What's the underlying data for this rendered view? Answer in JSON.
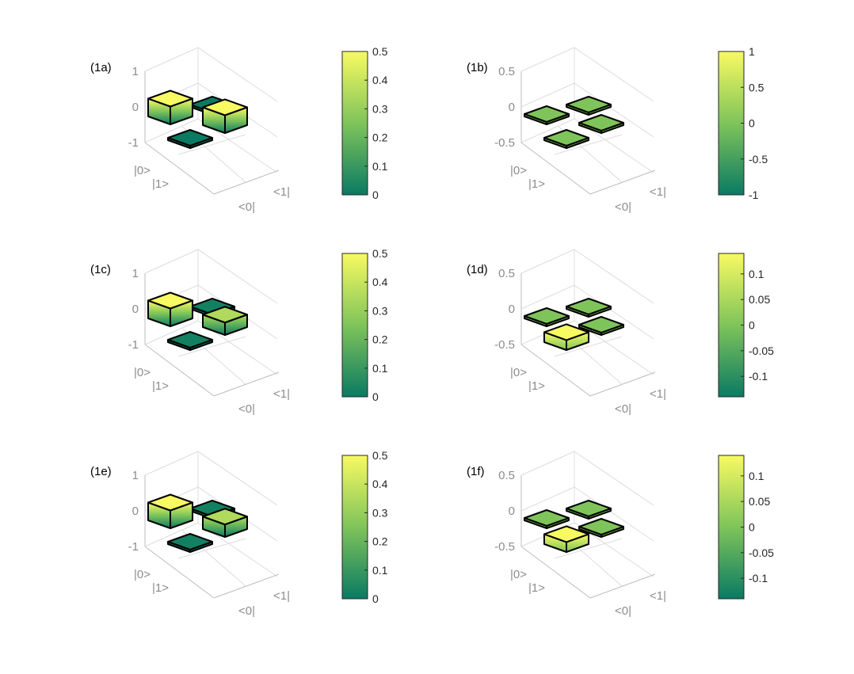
{
  "colormap": {
    "low": "#0a7a63",
    "mid": "#7fc45a",
    "high": "#f8fa62"
  },
  "chart_data": [
    {
      "type": "bar3d",
      "label": "(1a)",
      "row_labels": [
        "|0>",
        "|1>"
      ],
      "col_labels": [
        "<0|",
        "<1|"
      ],
      "values": [
        [
          0.5,
          0.0
        ],
        [
          0.0,
          0.5
        ]
      ],
      "zlim": [
        -1,
        1
      ],
      "zticks": [
        "1",
        "0",
        "-1"
      ],
      "colorbar": {
        "range": [
          0,
          0.5
        ],
        "ticks": [
          "0.5",
          "0.4",
          "0.3",
          "0.2",
          "0.1",
          "0"
        ]
      }
    },
    {
      "type": "bar3d",
      "label": "(1b)",
      "row_labels": [
        "|0>",
        "|1>"
      ],
      "col_labels": [
        "<0|",
        "<1|"
      ],
      "values": [
        [
          0.0,
          0.0
        ],
        [
          0.0,
          0.0
        ]
      ],
      "zlim": [
        -0.5,
        0.5
      ],
      "zticks": [
        "0.5",
        "0",
        "-0.5"
      ],
      "colorbar": {
        "range": [
          -1,
          1
        ],
        "ticks": [
          "1",
          "0.5",
          "0",
          "-0.5",
          "-1"
        ]
      }
    },
    {
      "type": "bar3d",
      "label": "(1c)",
      "row_labels": [
        "|0>",
        "|1>"
      ],
      "col_labels": [
        "<0|",
        "<1|"
      ],
      "values": [
        [
          0.5,
          0.02
        ],
        [
          0.02,
          0.35
        ]
      ],
      "zlim": [
        -1,
        1
      ],
      "zticks": [
        "1",
        "0",
        "-1"
      ],
      "colorbar": {
        "range": [
          0,
          0.5
        ],
        "ticks": [
          "0.5",
          "0.4",
          "0.3",
          "0.2",
          "0.1",
          "0"
        ]
      }
    },
    {
      "type": "bar3d",
      "label": "(1d)",
      "row_labels": [
        "|0>",
        "|1>"
      ],
      "col_labels": [
        "<0|",
        "<1|"
      ],
      "values": [
        [
          0.0,
          0.0
        ],
        [
          0.14,
          0.0
        ]
      ],
      "zlim": [
        -0.5,
        0.5
      ],
      "zticks": [
        "0.5",
        "0",
        "-0.5"
      ],
      "colorbar": {
        "range": [
          -0.14,
          0.14
        ],
        "ticks": [
          "0.1",
          "0.05",
          "0",
          "-0.05",
          "-0.1"
        ]
      }
    },
    {
      "type": "bar3d",
      "label": "(1e)",
      "row_labels": [
        "|0>",
        "|1>"
      ],
      "col_labels": [
        "<0|",
        "<1|"
      ],
      "values": [
        [
          0.5,
          0.02
        ],
        [
          0.02,
          0.35
        ]
      ],
      "zlim": [
        -1,
        1
      ],
      "zticks": [
        "1",
        "0",
        "-1"
      ],
      "colorbar": {
        "range": [
          0,
          0.5
        ],
        "ticks": [
          "0.5",
          "0.4",
          "0.3",
          "0.2",
          "0.1",
          "0"
        ]
      }
    },
    {
      "type": "bar3d",
      "label": "(1f)",
      "row_labels": [
        "|0>",
        "|1>"
      ],
      "col_labels": [
        "<0|",
        "<1|"
      ],
      "values": [
        [
          0.0,
          0.0
        ],
        [
          0.14,
          0.0
        ]
      ],
      "zlim": [
        -0.5,
        0.5
      ],
      "zticks": [
        "0.5",
        "0",
        "-0.5"
      ],
      "colorbar": {
        "range": [
          -0.14,
          0.14
        ],
        "ticks": [
          "0.1",
          "0.05",
          "0",
          "-0.05",
          "-0.1"
        ]
      }
    }
  ]
}
